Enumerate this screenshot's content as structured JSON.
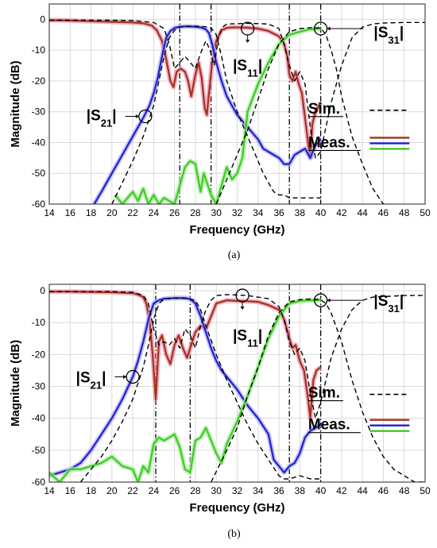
{
  "colors": {
    "sim": "#000000",
    "s11_meas": "#a0341a",
    "s21_meas": "#1f1fd0",
    "s31_meas": "#3ccc1e",
    "s11_glow": "#f08fb0",
    "s21_glow": "#a9a9f5",
    "s31_glow": "#a6eba0",
    "grid": "#d9d9d9",
    "marker": "#444444"
  },
  "chart_data": [
    {
      "type": "line",
      "caption": "(a)",
      "xlabel": "Frequency (GHz)",
      "ylabel": "Magnitude (dB)",
      "xlim": [
        14,
        50
      ],
      "ylim": [
        -60,
        5
      ],
      "xticks": [
        14,
        16,
        18,
        20,
        22,
        24,
        26,
        28,
        30,
        32,
        34,
        36,
        38,
        40,
        42,
        44,
        46,
        48,
        50
      ],
      "yticks": [
        0,
        -10,
        -20,
        -30,
        -40,
        -50,
        -60
      ],
      "grid": true,
      "legend": {
        "placement": "right",
        "items": [
          {
            "label": "Sim.",
            "style": "dashed"
          },
          {
            "label": "Meas.",
            "style": "solid"
          }
        ]
      },
      "vlines": [
        26.5,
        29.5,
        37.0,
        40.0
      ],
      "annotations": [
        {
          "label": "|S21|",
          "marker": [
            23.2,
            -31.5
          ],
          "label_pos": [
            19,
            -31
          ]
        },
        {
          "label": "|S11|",
          "marker": [
            33.0,
            -3.0
          ],
          "label_pos": [
            33,
            -15
          ]
        },
        {
          "label": "|S31|",
          "marker": [
            40.0,
            -3.0
          ],
          "label_pos": [
            45,
            -4
          ]
        }
      ],
      "series": [
        {
          "name": "|S11|",
          "kind": "meas",
          "x": [
            14,
            15,
            16,
            18,
            20,
            22,
            23,
            23.8,
            24.3,
            24.8,
            25.2,
            25.6,
            25.9,
            26.2,
            26.6,
            27,
            27.3,
            27.6,
            28,
            28.3,
            28.6,
            28.9,
            29.1,
            29.3,
            29.6,
            30,
            30.5,
            31,
            31.5,
            32,
            33,
            34,
            35,
            36,
            36.5,
            36.8,
            37,
            37.3,
            37.6,
            37.9,
            38.2,
            38.5,
            38.8,
            39,
            39.2,
            39.5,
            40
          ],
          "y": [
            -0.3,
            -0.3,
            -0.4,
            -0.6,
            -0.8,
            -1.0,
            -1.3,
            -2.0,
            -3.5,
            -7,
            -13,
            -20,
            -22,
            -17,
            -16,
            -17,
            -20,
            -25,
            -18,
            -14,
            -19,
            -29,
            -31,
            -24,
            -14,
            -7,
            -3.5,
            -2.8,
            -2.6,
            -2.6,
            -2.7,
            -3.0,
            -3.8,
            -5.5,
            -8,
            -12,
            -18,
            -20,
            -17,
            -21,
            -24,
            -32,
            -40,
            -45,
            -34,
            -30,
            -27
          ]
        },
        {
          "name": "|S21|",
          "kind": "meas",
          "x": [
            18.3,
            19,
            20,
            21,
            22,
            22.5,
            23,
            23.3,
            23.6,
            24,
            24.4,
            24.8,
            25.2,
            25.6,
            26,
            26.5,
            27,
            27.5,
            28,
            28.5,
            29,
            29.3,
            29.6,
            30,
            30.5,
            31,
            31.5,
            32,
            32.5,
            33,
            33.5,
            34,
            34.5,
            35,
            35.5,
            36,
            36.5,
            37,
            37.5,
            38,
            38.5,
            39,
            39.5,
            40
          ],
          "y": [
            -60,
            -56,
            -50,
            -44,
            -38,
            -35,
            -32,
            -30,
            -28,
            -24,
            -19,
            -12,
            -6,
            -3.8,
            -2.8,
            -2.4,
            -2.3,
            -2.3,
            -2.4,
            -2.6,
            -3.2,
            -4.5,
            -8,
            -14,
            -20,
            -25,
            -28,
            -31,
            -33,
            -35,
            -37,
            -39,
            -42,
            -43,
            -44,
            -45,
            -47,
            -47,
            -44,
            -43,
            -42,
            -45,
            -41,
            -39
          ]
        },
        {
          "name": "|S31|",
          "kind": "meas",
          "x": [
            20.3,
            21,
            22,
            22.5,
            23,
            23.5,
            24,
            24.5,
            25,
            26,
            27,
            27.5,
            28,
            28.5,
            28.8,
            29.2,
            29.5,
            30,
            30.5,
            31,
            31.5,
            32,
            32.5,
            33,
            34,
            35,
            36,
            37,
            38,
            39,
            40
          ],
          "y": [
            -57,
            -60,
            -56,
            -59,
            -55,
            -60,
            -57,
            -60,
            -58,
            -60,
            -48,
            -46,
            -47,
            -56,
            -50,
            -54,
            -57,
            -60,
            -54,
            -48,
            -52,
            -50,
            -45,
            -30,
            -21,
            -14,
            -8,
            -5,
            -4,
            -3.2,
            -3.0
          ]
        },
        {
          "name": "|S11| Sim.",
          "kind": "sim",
          "x": [
            14,
            18,
            20,
            22,
            24,
            25,
            25.5,
            26,
            26.5,
            27,
            27.5,
            28,
            28.5,
            29,
            29.4,
            29.8,
            30.2,
            30.6,
            31,
            33,
            35,
            36,
            36.5,
            37,
            37.5,
            38,
            38.5,
            39,
            39.5,
            40,
            41,
            42,
            43,
            44,
            45,
            46,
            48,
            50
          ],
          "y": [
            -0.3,
            -0.3,
            -0.3,
            -0.4,
            -1.0,
            -3.0,
            -8,
            -16,
            -14,
            -12,
            -14,
            -16,
            -11,
            -7,
            -10,
            -15,
            -6,
            -2.5,
            -1.5,
            -1.3,
            -1.5,
            -3,
            -8,
            -15,
            -20,
            -17,
            -21,
            -35,
            -45,
            -43,
            -27,
            -15,
            -6,
            -2.5,
            -1.5,
            -1.2,
            -1.0,
            -1.0
          ]
        },
        {
          "name": "|S21| Sim.",
          "kind": "sim",
          "x": [
            20,
            21,
            22,
            23,
            24,
            24.5,
            25,
            25.5,
            26,
            26.5,
            27,
            28,
            29,
            29.5,
            30,
            30.5,
            31,
            32,
            33,
            33.5,
            34,
            34.5,
            35,
            35.5,
            36,
            36.5,
            37,
            38,
            39,
            40
          ],
          "y": [
            -60,
            -53,
            -46,
            -38,
            -28,
            -20,
            -12,
            -6,
            -3.5,
            -2.5,
            -2.3,
            -2.2,
            -2.4,
            -2.8,
            -5,
            -12,
            -20,
            -30,
            -38,
            -42,
            -46,
            -50,
            -53,
            -56,
            -57,
            -57,
            -58,
            -58,
            -58,
            -58
          ]
        },
        {
          "name": "|S31| Sim.",
          "kind": "sim",
          "x": [
            30,
            31,
            32,
            33,
            34,
            35,
            36,
            37,
            38,
            39,
            40,
            40.5,
            41,
            41.5,
            42,
            43,
            44,
            45,
            46,
            46.5
          ],
          "y": [
            -60,
            -52,
            -44,
            -36,
            -26,
            -16,
            -8,
            -4,
            -3,
            -2.7,
            -2.8,
            -5,
            -10,
            -16,
            -25,
            -38,
            -47,
            -55,
            -60,
            -60
          ]
        }
      ]
    },
    {
      "type": "line",
      "caption": "(b)",
      "xlabel": "Frequency (GHz)",
      "ylabel": "Magnitude (dB)",
      "xlim": [
        14,
        50
      ],
      "ylim": [
        -60,
        2
      ],
      "xticks": [
        14,
        16,
        18,
        20,
        22,
        24,
        26,
        28,
        30,
        32,
        34,
        36,
        38,
        40,
        42,
        44,
        46,
        48,
        50
      ],
      "yticks": [
        0,
        -10,
        -20,
        -30,
        -40,
        -50,
        -60
      ],
      "grid": true,
      "legend": {
        "placement": "right",
        "items": [
          {
            "label": "Sim.",
            "style": "dashed"
          },
          {
            "label": "Meas.",
            "style": "solid"
          }
        ]
      },
      "vlines": [
        24.2,
        27.5,
        37.0,
        40.0
      ],
      "annotations": [
        {
          "label": "|S21|",
          "marker": [
            22,
            -27
          ],
          "label_pos": [
            18,
            -27
          ]
        },
        {
          "label": "|S11|",
          "marker": [
            32.5,
            -1.5
          ],
          "label_pos": [
            33,
            -14
          ]
        },
        {
          "label": "|S31|",
          "marker": [
            40,
            -3
          ],
          "label_pos": [
            45,
            -3
          ]
        }
      ],
      "series": [
        {
          "name": "|S11|",
          "kind": "meas",
          "x": [
            14,
            16,
            18,
            20,
            22,
            22.5,
            23,
            23.3,
            23.6,
            23.9,
            24.2,
            24.5,
            24.8,
            25.2,
            25.6,
            26,
            26.4,
            26.8,
            27.2,
            27.6,
            28,
            28.5,
            29,
            29.5,
            30,
            31,
            32,
            33,
            34,
            35,
            36,
            36.5,
            37,
            37.3,
            37.6,
            38,
            38.4,
            38.8,
            39,
            39.3,
            39.6,
            40
          ],
          "y": [
            -0.3,
            -0.3,
            -0.4,
            -0.5,
            -0.8,
            -1.2,
            -2.0,
            -4,
            -9,
            -20,
            -34,
            -16,
            -14,
            -20,
            -23,
            -17,
            -14,
            -18,
            -21,
            -17,
            -13,
            -11,
            -12,
            -8,
            -4,
            -3,
            -3.2,
            -3.3,
            -3.5,
            -4.5,
            -6,
            -9,
            -15,
            -18,
            -17,
            -22,
            -25,
            -34,
            -40,
            -28,
            -25,
            -24
          ]
        },
        {
          "name": "|S21|",
          "kind": "meas",
          "x": [
            14,
            15,
            16,
            17,
            18,
            19,
            20,
            21,
            22,
            22.5,
            23,
            23.5,
            24,
            24.5,
            25,
            26,
            27,
            27.5,
            28,
            28.5,
            29,
            29.5,
            30,
            30.5,
            31,
            32,
            33,
            34,
            35,
            35.5,
            36,
            36.5,
            37,
            37.5,
            38,
            38.5,
            39,
            39.5,
            40
          ],
          "y": [
            -58,
            -57,
            -56,
            -54,
            -50,
            -45,
            -40,
            -34,
            -27,
            -22,
            -16,
            -9,
            -4,
            -3,
            -2.5,
            -2.3,
            -2.3,
            -2.6,
            -4,
            -8,
            -13,
            -18,
            -22,
            -25,
            -27,
            -31,
            -36,
            -40,
            -45,
            -53,
            -55,
            -57,
            -55,
            -54,
            -51,
            -46,
            -44,
            -43,
            -42
          ]
        },
        {
          "name": "|S31|",
          "kind": "meas",
          "x": [
            14,
            15,
            16,
            17,
            18,
            19,
            20,
            21,
            22,
            22.5,
            23,
            23.5,
            24,
            24.5,
            25,
            26,
            26.5,
            27,
            27.5,
            28,
            28.5,
            29,
            29.5,
            30,
            30.5,
            31,
            32,
            33,
            34,
            35,
            36,
            37,
            38,
            39,
            40
          ],
          "y": [
            -57,
            -60,
            -56,
            -56,
            -55,
            -54,
            -52,
            -55,
            -56,
            -60,
            -55,
            -57,
            -48,
            -46,
            -47,
            -45,
            -49,
            -56,
            -57,
            -47,
            -46,
            -43,
            -47,
            -51,
            -54,
            -48,
            -41,
            -33,
            -24,
            -15,
            -8,
            -4,
            -3.2,
            -3,
            -2.9
          ]
        },
        {
          "name": "|S11| Sim.",
          "kind": "sim",
          "x": [
            14,
            18,
            20,
            22,
            23,
            23.5,
            24,
            24.5,
            25,
            25.5,
            26,
            26.5,
            27,
            27.5,
            28,
            28.5,
            29,
            29.5,
            30,
            31,
            33,
            35,
            36,
            36.5,
            37,
            37.5,
            38,
            38.5,
            39,
            39.5,
            40,
            41,
            42,
            43,
            44,
            45,
            48,
            50
          ],
          "y": [
            -0.3,
            -0.3,
            -0.3,
            -0.5,
            -1.5,
            -4,
            -12,
            -17,
            -16,
            -17,
            -15,
            -18,
            -12,
            -14,
            -18,
            -11,
            -6,
            -3,
            -1.5,
            -1.2,
            -1.5,
            -2.5,
            -5,
            -9,
            -16,
            -20,
            -18,
            -22,
            -32,
            -40,
            -35,
            -21,
            -12,
            -6,
            -3,
            -2,
            -1.5,
            -1.5
          ]
        },
        {
          "name": "|S21| Sim.",
          "kind": "sim",
          "x": [
            17,
            18,
            19,
            20,
            21,
            22,
            23,
            23.5,
            24,
            24.5,
            25,
            26,
            27,
            28,
            28.5,
            29,
            30,
            31,
            32,
            33,
            34,
            35,
            36,
            36.5,
            37,
            38,
            39,
            40
          ],
          "y": [
            -60,
            -56,
            -52,
            -47,
            -41,
            -34,
            -24,
            -17,
            -9,
            -4,
            -2.6,
            -2.3,
            -2.4,
            -3,
            -6,
            -11,
            -20,
            -28,
            -35,
            -42,
            -48,
            -53,
            -58,
            -59,
            -59,
            -58,
            -59,
            -59
          ]
        },
        {
          "name": "|S31| Sim.",
          "kind": "sim",
          "x": [
            29.5,
            31,
            32,
            33,
            34,
            35,
            36,
            37,
            38,
            39,
            40,
            40.5,
            41,
            42,
            43,
            44,
            45,
            46,
            47,
            48,
            49,
            50
          ],
          "y": [
            -60,
            -50,
            -43,
            -33,
            -24,
            -14,
            -7,
            -3.5,
            -2.8,
            -2.6,
            -2.8,
            -4,
            -7,
            -16,
            -28,
            -38,
            -46,
            -52,
            -56,
            -58,
            -60,
            -60
          ]
        }
      ]
    }
  ]
}
